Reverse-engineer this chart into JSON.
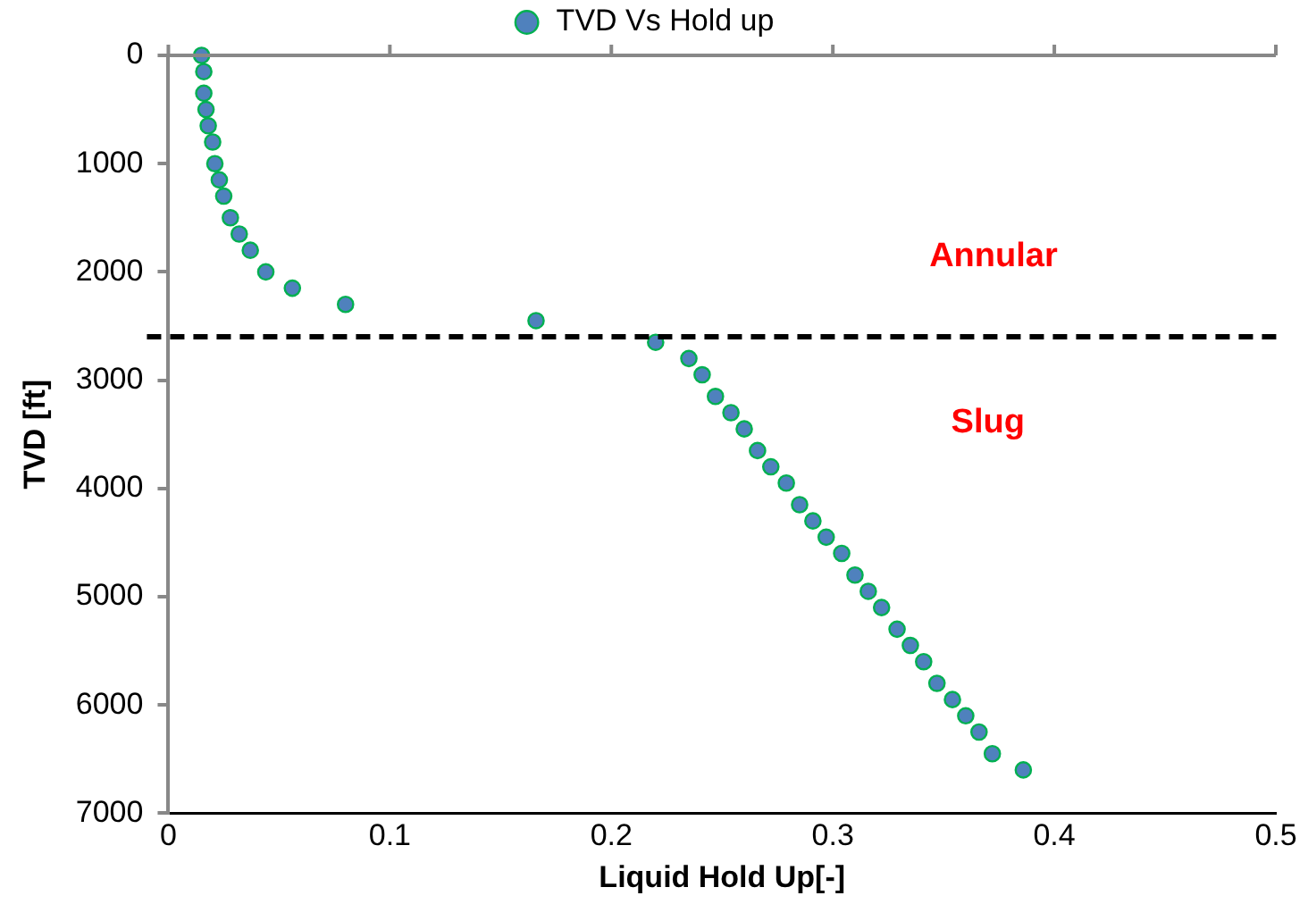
{
  "chart_data": {
    "type": "scatter",
    "xlabel": "Liquid Hold Up[-]",
    "ylabel": "TVD [ft]",
    "xlim": [
      0,
      0.5
    ],
    "xticks": [
      0,
      0.1,
      0.2,
      0.3,
      0.4,
      0.5
    ],
    "ylim": [
      7000,
      0
    ],
    "yticks": [
      0,
      1000,
      2000,
      3000,
      4000,
      5000,
      6000,
      7000
    ],
    "grid": false,
    "legend": "top",
    "marker": "circle",
    "series": [
      {
        "name": "TVD Vs Hold up",
        "color": "#4f81bd",
        "x": [
          0.015,
          0.016,
          0.016,
          0.017,
          0.018,
          0.02,
          0.021,
          0.023,
          0.025,
          0.028,
          0.032,
          0.037,
          0.044,
          0.056,
          0.08,
          0.166,
          0.22,
          0.235,
          0.241,
          0.247,
          0.254,
          0.26,
          0.266,
          0.272,
          0.279,
          0.285,
          0.291,
          0.297,
          0.304,
          0.31,
          0.316,
          0.322,
          0.329,
          0.335,
          0.341,
          0.347,
          0.354,
          0.36,
          0.366,
          0.372,
          0.386
        ],
        "values": [
          0,
          150,
          350,
          500,
          650,
          800,
          1000,
          1150,
          1300,
          1500,
          1650,
          1800,
          2000,
          2150,
          2300,
          2450,
          2650,
          2800,
          2950,
          3150,
          3300,
          3450,
          3650,
          3800,
          3950,
          4150,
          4300,
          4450,
          4600,
          4800,
          4950,
          5100,
          5300,
          5450,
          5600,
          5800,
          5950,
          6100,
          6250,
          6450,
          6600
        ]
      }
    ],
    "ref_lines": [
      {
        "axis": "y",
        "value": 2600,
        "color": "#000000",
        "line_style": "dashed"
      }
    ],
    "annotations": [
      "Annular",
      "Slug"
    ]
  }
}
